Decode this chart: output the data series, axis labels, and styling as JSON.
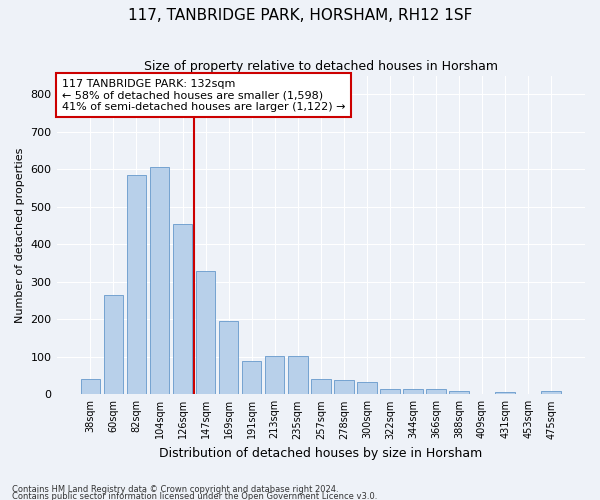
{
  "title": "117, TANBRIDGE PARK, HORSHAM, RH12 1SF",
  "subtitle": "Size of property relative to detached houses in Horsham",
  "xlabel": "Distribution of detached houses by size in Horsham",
  "ylabel": "Number of detached properties",
  "categories": [
    "38sqm",
    "60sqm",
    "82sqm",
    "104sqm",
    "126sqm",
    "147sqm",
    "169sqm",
    "191sqm",
    "213sqm",
    "235sqm",
    "257sqm",
    "278sqm",
    "300sqm",
    "322sqm",
    "344sqm",
    "366sqm",
    "388sqm",
    "409sqm",
    "431sqm",
    "453sqm",
    "475sqm"
  ],
  "values": [
    40,
    265,
    585,
    605,
    455,
    330,
    195,
    90,
    103,
    103,
    42,
    38,
    33,
    14,
    15,
    13,
    10,
    0,
    7,
    0,
    8
  ],
  "bar_color": "#b8d0ea",
  "bar_edge_color": "#6699cc",
  "vline_x_index": 4,
  "vline_color": "#cc0000",
  "annotation_line1": "117 TANBRIDGE PARK: 132sqm",
  "annotation_line2": "← 58% of detached houses are smaller (1,598)",
  "annotation_line3": "41% of semi-detached houses are larger (1,122) →",
  "annotation_box_color": "white",
  "annotation_box_edge": "#cc0000",
  "ylim": [
    0,
    850
  ],
  "yticks": [
    0,
    100,
    200,
    300,
    400,
    500,
    600,
    700,
    800
  ],
  "footer1": "Contains HM Land Registry data © Crown copyright and database right 2024.",
  "footer2": "Contains public sector information licensed under the Open Government Licence v3.0.",
  "background_color": "#eef2f8",
  "grid_color": "white",
  "title_fontsize": 11,
  "subtitle_fontsize": 9,
  "ylabel_fontsize": 8,
  "xlabel_fontsize": 9,
  "annotation_fontsize": 8
}
